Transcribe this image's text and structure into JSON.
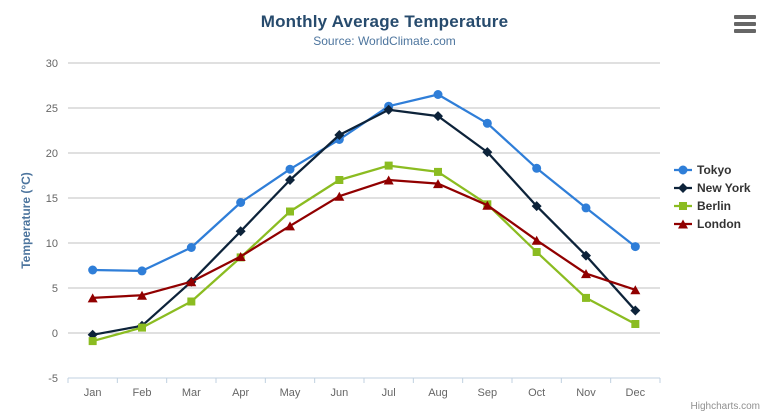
{
  "header": {
    "title": "Monthly Average Temperature",
    "subtitle": "Source: WorldClimate.com"
  },
  "chart_data": {
    "type": "line",
    "title": "Monthly Average Temperature",
    "subtitle": "Source: WorldClimate.com",
    "categories": [
      "Jan",
      "Feb",
      "Mar",
      "Apr",
      "May",
      "Jun",
      "Jul",
      "Aug",
      "Sep",
      "Oct",
      "Nov",
      "Dec"
    ],
    "series": [
      {
        "name": "Tokyo",
        "color": "#2f7ed8",
        "marker": "circle",
        "values": [
          7.0,
          6.9,
          9.5,
          14.5,
          18.2,
          21.5,
          25.2,
          26.5,
          23.3,
          18.3,
          13.9,
          9.6
        ]
      },
      {
        "name": "New York",
        "color": "#0d233a",
        "marker": "diamond",
        "values": [
          -0.2,
          0.8,
          5.7,
          11.3,
          17.0,
          22.0,
          24.8,
          24.1,
          20.1,
          14.1,
          8.6,
          2.5
        ]
      },
      {
        "name": "Berlin",
        "color": "#8bbc21",
        "marker": "square",
        "values": [
          -0.9,
          0.6,
          3.5,
          8.4,
          13.5,
          17.0,
          18.6,
          17.9,
          14.3,
          9.0,
          3.9,
          1.0
        ]
      },
      {
        "name": "London",
        "color": "#910000",
        "marker": "triangle",
        "values": [
          3.9,
          4.2,
          5.7,
          8.5,
          11.9,
          15.2,
          17.0,
          16.6,
          14.2,
          10.3,
          6.6,
          4.8
        ]
      }
    ],
    "xlabel": "",
    "ylabel": "Temperature (°C)",
    "ylim": [
      -5,
      30
    ],
    "y_ticks": [
      -5,
      0,
      5,
      10,
      15,
      20,
      25,
      30
    ],
    "grid": true,
    "legend_position": "right",
    "colors": {
      "grid_line": "#c0c0c0",
      "axis_line": "#c0d0e0",
      "axis_label": "#666666",
      "axis_title": "#4d759e",
      "title": "#274b6d",
      "subtitle": "#4d759e"
    }
  },
  "credits": {
    "label": "Highcharts.com"
  }
}
